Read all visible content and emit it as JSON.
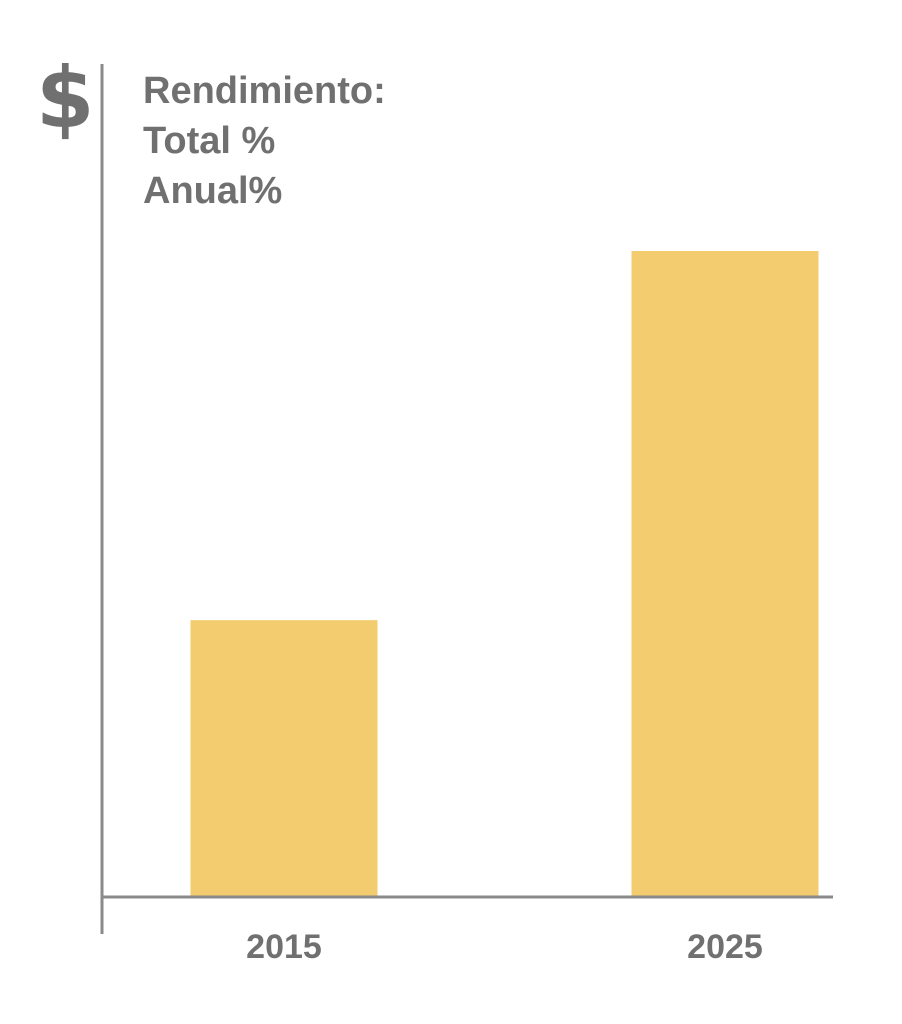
{
  "chart_data": {
    "type": "bar",
    "y_axis_symbol": "$",
    "title_lines": [
      "Rendimiento:",
      "Total %",
      "Anual%"
    ],
    "categories": [
      "2015",
      "2025"
    ],
    "values": [
      30,
      70
    ],
    "ylim": [
      0,
      80
    ],
    "grid": false,
    "legend": "none",
    "bar_color": "#F3CC6F",
    "axis_color": "#8A8A8A",
    "text_color": "#707070"
  }
}
